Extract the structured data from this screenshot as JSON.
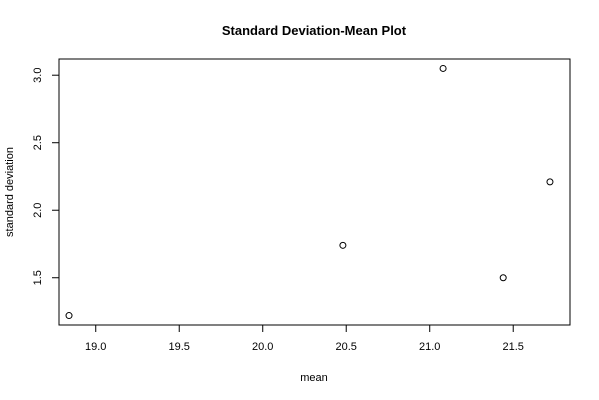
{
  "chart_data": {
    "type": "scatter",
    "title": "Standard Deviation-Mean Plot",
    "xlabel": "mean",
    "ylabel": "standard deviation",
    "xlim": [
      18.78,
      21.84
    ],
    "ylim": [
      1.15,
      3.12
    ],
    "xticks": [
      19.0,
      19.5,
      20.0,
      20.5,
      21.0,
      21.5
    ],
    "xtick_labels": [
      "19.0",
      "19.5",
      "20.0",
      "20.5",
      "21.0",
      "21.5"
    ],
    "yticks": [
      1.5,
      2.0,
      2.5,
      3.0
    ],
    "ytick_labels": [
      "1.5",
      "2.0",
      "2.5",
      "3.0"
    ],
    "grid": false,
    "marker": "open-circle",
    "points": [
      {
        "x": 18.84,
        "y": 1.22
      },
      {
        "x": 20.48,
        "y": 1.74
      },
      {
        "x": 21.08,
        "y": 3.05
      },
      {
        "x": 21.44,
        "y": 1.5
      },
      {
        "x": 21.72,
        "y": 2.21
      }
    ]
  }
}
